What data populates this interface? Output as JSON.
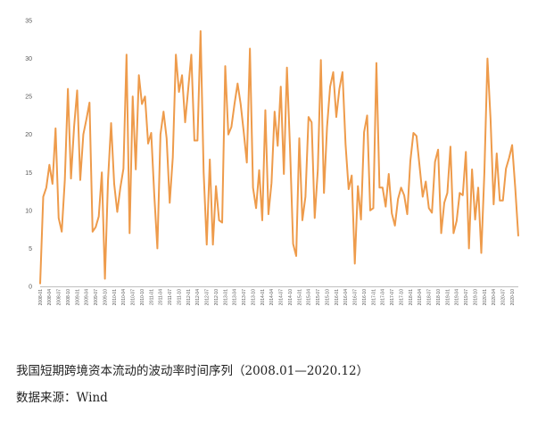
{
  "caption": {
    "title": "我国短期跨境资本流动的波动率时间序列（2008.01—2020.12）",
    "source": "数据来源：Wind"
  },
  "chart_data": {
    "type": "line",
    "title": "",
    "xlabel": "",
    "ylabel": "",
    "ylim": [
      0,
      35
    ],
    "yticks": [
      0,
      5,
      10,
      15,
      20,
      25,
      30,
      35
    ],
    "grid": false,
    "legend": "none",
    "line_color": "#EE9B4B",
    "axis_color": "#BFBFBF",
    "x_tick_labels": [
      "2008-01",
      "2008-04",
      "2008-07",
      "2008-10",
      "2009-01",
      "2009-04",
      "2009-07",
      "2009-10",
      "2010-01",
      "2010-04",
      "2010-07",
      "2010-10",
      "2011-01",
      "2011-04",
      "2011-07",
      "2011-10",
      "2012-01",
      "2012-04",
      "2012-07",
      "2012-10",
      "2013-01",
      "2013-04",
      "2013-07",
      "2013-10",
      "2014-01",
      "2014-04",
      "2014-07",
      "2014-10",
      "2015-01",
      "2015-04",
      "2015-07",
      "2015-10",
      "2016-01",
      "2016-04",
      "2016-07",
      "2016-10",
      "2017-01",
      "2017-04",
      "2017-07",
      "2017-10",
      "2018-01",
      "2018-04",
      "2018-07",
      "2018-10",
      "2019-01",
      "2019-04",
      "2019-07",
      "2019-10",
      "2020-01",
      "2020-04",
      "2020-07",
      "2020-10"
    ],
    "series": [
      {
        "values": [
          0.3,
          11.8,
          13.0,
          16.0,
          13.5,
          20.8,
          9.0,
          7.2,
          14.0,
          26.0,
          14.2,
          21.0,
          25.8,
          14.0,
          20.0,
          22.0,
          24.2,
          7.2,
          7.8,
          9.2,
          15.0,
          1.0,
          14.0,
          21.5,
          13.5,
          9.8,
          13.0,
          15.5,
          30.5,
          7.0,
          25.0,
          15.4,
          27.8,
          24.0,
          25.0,
          18.8,
          20.2,
          12.0,
          5.0,
          20.0,
          23.0,
          19.5,
          11.0,
          17.0,
          30.5,
          25.6,
          27.8,
          21.6,
          26.0,
          30.5,
          19.2,
          19.2,
          33.6,
          15.0,
          5.5,
          16.7,
          5.5,
          13.2,
          8.7,
          8.4,
          29.0,
          20.0,
          21.0,
          24.0,
          26.7,
          24.0,
          20.3,
          16.3,
          31.3,
          13.0,
          10.3,
          15.3,
          8.7,
          23.2,
          9.5,
          13.6,
          23.0,
          18.5,
          26.3,
          14.8,
          28.8,
          18.2,
          5.6,
          4.0,
          19.5,
          8.7,
          11.8,
          22.3,
          21.6,
          9.0,
          15.3,
          29.8,
          12.3,
          21.0,
          26.3,
          28.2,
          22.3,
          26.0,
          28.2,
          18.7,
          12.8,
          14.6,
          3.0,
          13.2,
          8.8,
          20.3,
          22.5,
          10.0,
          10.3,
          29.4,
          13.0,
          13.0,
          10.5,
          14.8,
          9.6,
          8.0,
          11.5,
          13.0,
          12.0,
          9.5,
          16.5,
          20.2,
          19.8,
          15.8,
          11.8,
          13.8,
          10.3,
          9.7,
          16.4,
          18.0,
          7.0,
          11.0,
          12.3,
          18.4,
          7.0,
          8.6,
          12.3,
          12.0,
          17.7,
          5.0,
          15.4,
          8.8,
          13.0,
          4.4,
          15.0,
          30.0,
          22.0,
          10.8,
          17.5,
          11.3,
          11.3,
          15.5,
          16.9,
          18.6,
          13.0,
          6.6
        ]
      }
    ]
  }
}
